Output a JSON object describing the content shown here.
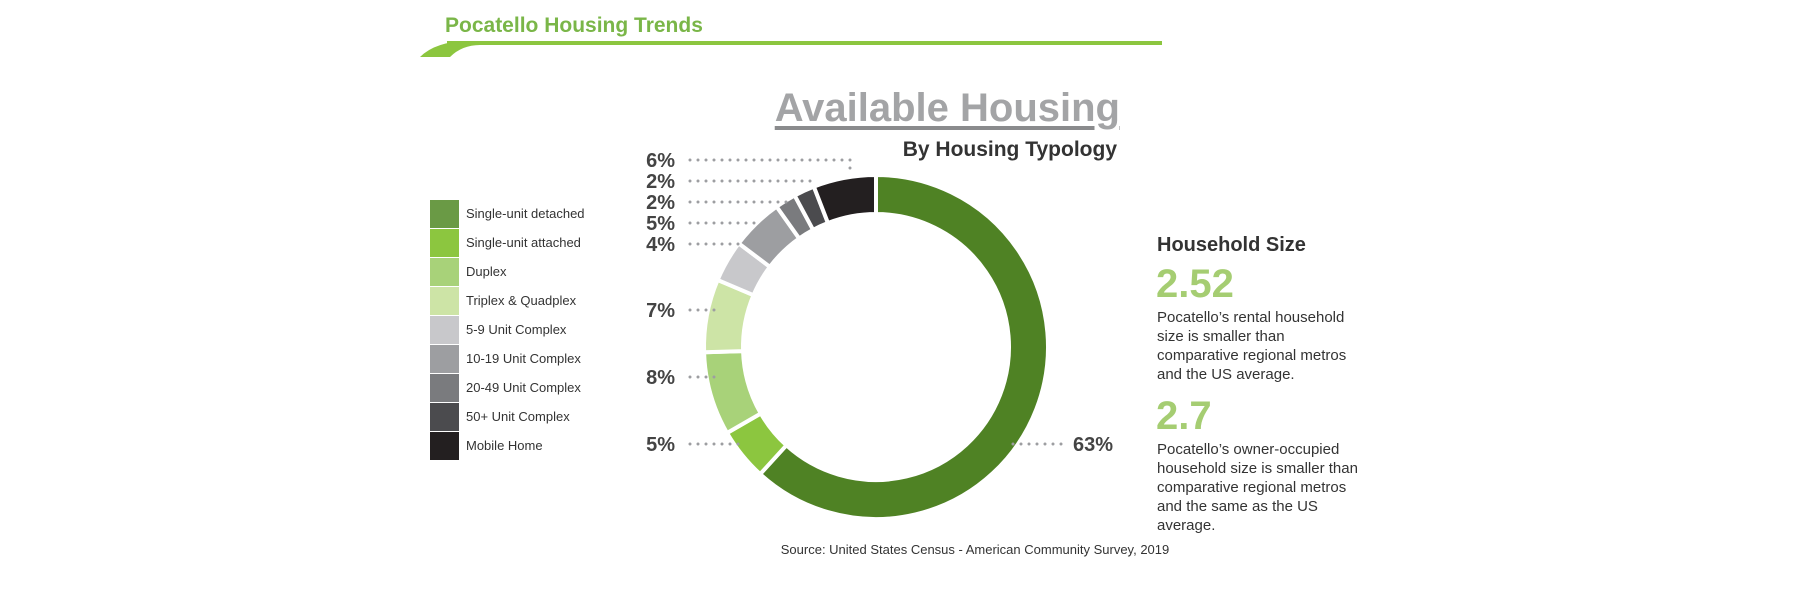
{
  "header": {
    "title": "Pocatello Housing Trends"
  },
  "colors": {
    "accent": "#7ab648"
  },
  "chart_data": {
    "type": "pie",
    "variant": "donut",
    "title": "Available Housing",
    "subtitle": "By Housing Typology",
    "legend_position": "left",
    "categories": [
      "Single-unit detached",
      "Single-unit attached",
      "Duplex",
      "Triplex & Quadplex",
      "5-9 Unit Complex",
      "10-19 Unit Complex",
      "20-49 Unit Complex",
      "50+ Unit Complex",
      "Mobile Home"
    ],
    "values": [
      63,
      5,
      8,
      7,
      4,
      5,
      2,
      2,
      6
    ],
    "labels": [
      "63%",
      "5%",
      "8%",
      "7%",
      "4%",
      "5%",
      "2%",
      "2%",
      "6%"
    ],
    "legend_colors": [
      "#6a9a45",
      "#8cc63f",
      "#a8d279",
      "#cde4a6",
      "#c8c8cb",
      "#9d9ea1",
      "#7a7b7e",
      "#4b4b4e",
      "#231f20"
    ],
    "slice_colors": [
      "#4f8224",
      "#8cc63f",
      "#a8d279",
      "#cde4a6",
      "#c8c8cb",
      "#9d9ea1",
      "#7a7b7e",
      "#4b4b4e",
      "#231f20"
    ],
    "source": "Source: United States Census - American Community Survey, 2019"
  },
  "household": {
    "heading": "Household Size",
    "stats": [
      {
        "value": "2.52",
        "description": "Pocatello’s rental household size is smaller than comparative regional metros and the US average."
      },
      {
        "value": "2.7",
        "description": "Pocatello’s owner-occupied household size is smaller than comparative regional metros and the same as the US average."
      }
    ]
  }
}
